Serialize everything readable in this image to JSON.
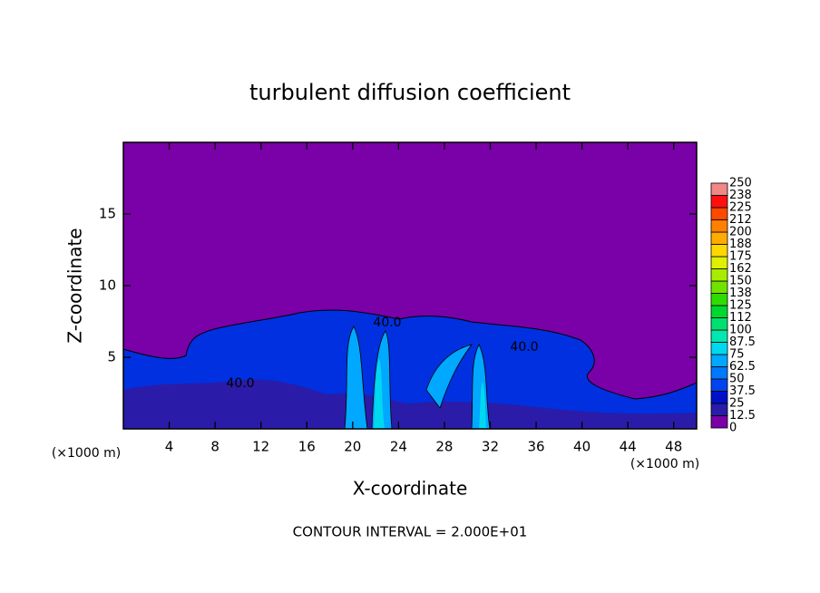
{
  "chart_data": {
    "type": "contour",
    "title": "turbulent diffusion coefficient",
    "x_label": "X-coordinate",
    "y_label": "Z-coordinate",
    "x_unit_left": "(×1000 m)",
    "x_unit_right": "(×1000 m)",
    "footer": "CONTOUR INTERVAL = 2.000E+01",
    "contour_labels": [
      "40.0",
      "40.0",
      "40.0"
    ],
    "xlim": [
      0,
      50
    ],
    "xticks": [
      4,
      8,
      12,
      16,
      20,
      24,
      28,
      32,
      36,
      40,
      44,
      48
    ],
    "ylim": [
      0,
      20
    ],
    "yticks": [
      5,
      10,
      15
    ],
    "levels": [
      0,
      12.5,
      25,
      37.5,
      50,
      62.5,
      75,
      87.5,
      100,
      {
        "value": 112.5,
        "label": "112"
      },
      125,
      {
        "value": 137.5,
        "label": "138"
      },
      150,
      {
        "value": 162.5,
        "label": "162"
      },
      175,
      {
        "value": 187.5,
        "label": "188"
      },
      200,
      {
        "value": 212.5,
        "label": "212"
      },
      225,
      {
        "value": 237.5,
        "label": "238"
      },
      250
    ],
    "colors": [
      "#7a00a8",
      "#2a1ca8",
      "#0010c8",
      "#0044f0",
      "#0078ff",
      "#00a8ff",
      "#00d8f0",
      "#00e8b0",
      "#00e070",
      "#00d830",
      "#30dc00",
      "#70e400",
      "#a8ec00",
      "#e0f000",
      "#ffd800",
      "#ffac00",
      "#ff8000",
      "#ff4800",
      "#ff1010",
      "#f08888"
    ]
  }
}
